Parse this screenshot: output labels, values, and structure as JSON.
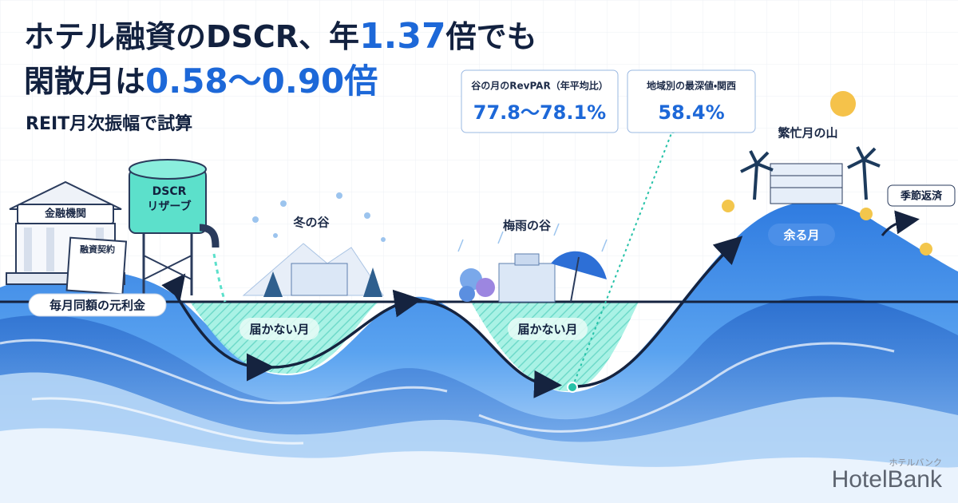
{
  "title": {
    "line1": [
      "ホテル融資のDSCR、年",
      "1.37",
      "倍でも"
    ],
    "line2": [
      "閑散月は",
      "0.58〜0.90倍"
    ]
  },
  "subtitle": "REIT月次振幅で試算",
  "cards": [
    {
      "label": "谷の月のRevPAR（年平均比）",
      "value": "77.8〜78.1%"
    },
    {
      "label": "地域別の最深値・関西",
      "value": "58.4%"
    }
  ],
  "labels": {
    "bank": "金融機関",
    "contract": "融資契約",
    "reserve": [
      "DSCR",
      "リザーブ"
    ],
    "payment": "毎月同額の元利金",
    "winter": "冬の谷",
    "rainy": "梅雨の谷",
    "peak": "繁忙月の山",
    "short1": "届かない月",
    "short2": "届かない月",
    "surplus": "余る月",
    "seasonal": "季節返済"
  },
  "logo": {
    "name": "HotelBank",
    "kana": "ホテルバンク"
  }
}
